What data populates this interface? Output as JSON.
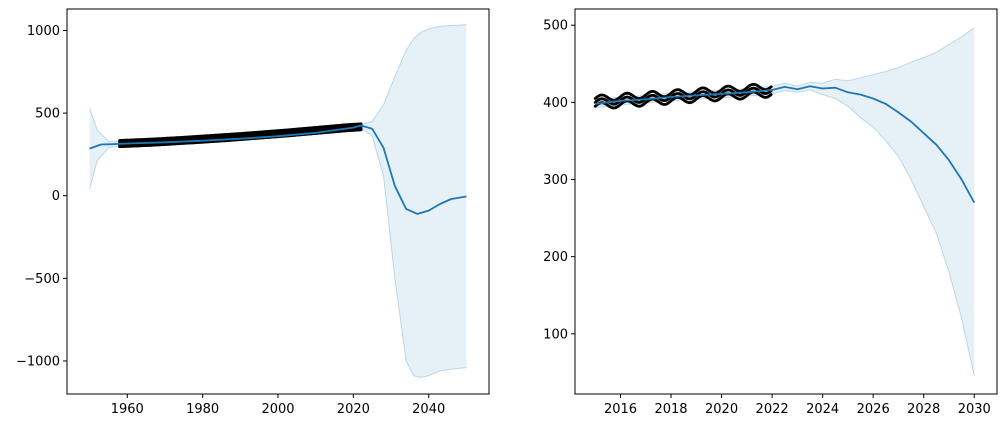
{
  "figure": {
    "background": "#ffffff"
  },
  "chart_data": [
    {
      "type": "line",
      "title": "",
      "xlabel": "",
      "ylabel": "",
      "xlim": [
        1944,
        2056
      ],
      "ylim": [
        -1200,
        1130
      ],
      "xticks": [
        1960,
        1980,
        2000,
        2020,
        2040
      ],
      "yticks": [
        -1000,
        -500,
        0,
        500,
        1000
      ],
      "xtick_labels": [
        "1960",
        "1980",
        "2000",
        "2020",
        "2040"
      ],
      "ytick_labels": [
        "−1000",
        "−500",
        "0",
        "500",
        "1000"
      ],
      "grid": false,
      "colors": {
        "forecast": "#1f77b4",
        "band": "#1f77b4",
        "observed": "#000000"
      },
      "observed": {
        "x": [
          1958,
          1962,
          1966,
          1970,
          1974,
          1978,
          1982,
          1986,
          1990,
          1994,
          1998,
          2002,
          2006,
          2010,
          2014,
          2018,
          2022
        ],
        "y_low": [
          298,
          302,
          306,
          311,
          317,
          322,
          328,
          334,
          341,
          348,
          355,
          362,
          370,
          378,
          386,
          394,
          400
        ],
        "y_high": [
          333,
          337,
          341,
          346,
          351,
          357,
          363,
          369,
          375,
          382,
          389,
          396,
          404,
          412,
          420,
          428,
          434
        ]
      },
      "forecast": {
        "x": [
          1950,
          1953,
          1956,
          1960,
          1970,
          1980,
          1990,
          2000,
          2010,
          2020,
          2022,
          2025,
          2028,
          2031,
          2034,
          2037,
          2040,
          2043,
          2046,
          2050
        ],
        "y": [
          285,
          310,
          312,
          316,
          323,
          333,
          345,
          360,
          381,
          412,
          425,
          405,
          290,
          60,
          -80,
          -110,
          -90,
          -50,
          -20,
          -5
        ]
      },
      "band": {
        "x": [
          1950,
          1952,
          1955,
          1958,
          1962,
          1970,
          1980,
          1990,
          2000,
          2010,
          2020,
          2022,
          2025,
          2028,
          2031,
          2034,
          2036,
          2038,
          2040,
          2043,
          2046,
          2050
        ],
        "lower": [
          40,
          210,
          290,
          300,
          305,
          315,
          325,
          338,
          355,
          375,
          400,
          410,
          360,
          120,
          -500,
          -1000,
          -1090,
          -1100,
          -1090,
          -1060,
          -1050,
          -1040
        ],
        "upper": [
          530,
          400,
          330,
          330,
          335,
          340,
          350,
          362,
          375,
          395,
          420,
          430,
          450,
          550,
          720,
          880,
          950,
          990,
          1010,
          1025,
          1030,
          1035
        ]
      }
    },
    {
      "type": "line",
      "title": "",
      "xlabel": "",
      "ylabel": "",
      "xlim": [
        2014.2,
        2030.9
      ],
      "ylim": [
        22,
        521
      ],
      "xticks": [
        2016,
        2018,
        2020,
        2022,
        2024,
        2026,
        2028,
        2030
      ],
      "yticks": [
        100,
        200,
        300,
        400,
        500
      ],
      "xtick_labels": [
        "2016",
        "2018",
        "2020",
        "2022",
        "2024",
        "2026",
        "2028",
        "2030"
      ],
      "ytick_labels": [
        "100",
        "200",
        "300",
        "400",
        "500"
      ],
      "grid": false,
      "colors": {
        "forecast": "#1f77b4",
        "band": "#1f77b4",
        "observed": "#000000"
      },
      "observed_seasonal": {
        "start": 2015.0,
        "end": 2022.0,
        "base": 400,
        "trend_per_year": 2.3,
        "amplitude": 4,
        "spread": 5
      },
      "forecast": {
        "x": [
          2015.0,
          2016.0,
          2017.0,
          2018.0,
          2019.0,
          2020.0,
          2021.0,
          2022.0,
          2022.5,
          2023.0,
          2023.5,
          2024.0,
          2024.5,
          2025.0,
          2025.5,
          2026.0,
          2026.5,
          2027.0,
          2027.5,
          2028.0,
          2028.5,
          2029.0,
          2029.5,
          2030.0
        ],
        "y": [
          398,
          402,
          404,
          407,
          409,
          411,
          413,
          416,
          420,
          417,
          421,
          418,
          419,
          413,
          410,
          405,
          398,
          387,
          375,
          360,
          345,
          325,
          300,
          270
        ]
      },
      "band": {
        "x": [
          2015.0,
          2016.0,
          2017.0,
          2018.0,
          2019.0,
          2020.0,
          2021.0,
          2022.0,
          2022.5,
          2023.0,
          2023.5,
          2024.0,
          2024.5,
          2025.0,
          2025.5,
          2026.0,
          2026.5,
          2027.0,
          2027.5,
          2028.0,
          2028.5,
          2029.0,
          2029.5,
          2030.0
        ],
        "lower": [
          393,
          397,
          399,
          402,
          404,
          406,
          408,
          411,
          415,
          413,
          416,
          410,
          405,
          395,
          380,
          368,
          350,
          330,
          300,
          265,
          230,
          180,
          120,
          45
        ],
        "upper": [
          403,
          407,
          409,
          412,
          414,
          416,
          418,
          421,
          425,
          421,
          426,
          425,
          430,
          428,
          432,
          436,
          440,
          445,
          452,
          458,
          465,
          475,
          485,
          497
        ]
      }
    }
  ]
}
